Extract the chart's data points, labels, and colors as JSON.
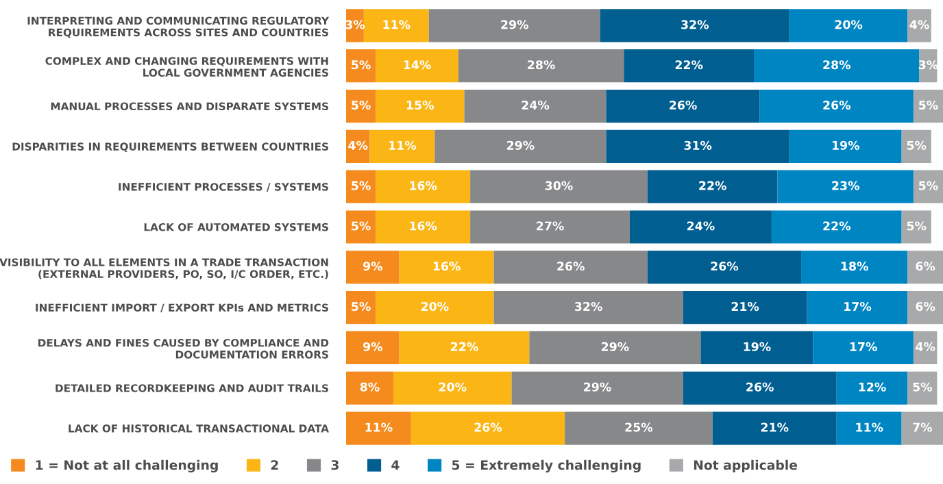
{
  "chart_data": {
    "type": "bar",
    "orientation": "horizontal",
    "stacked": true,
    "legend": "bottom",
    "grid": false,
    "tick_labels": "y",
    "xlim": [
      0,
      101
    ],
    "categories": [
      "INTERPRETING AND COMMUNICATING REGULATORY\nREQUIREMENTS ACROSS SITES AND COUNTRIES",
      "COMPLEX AND CHANGING REQUIREMENTS WITH\nLOCAL GOVERNMENT AGENCIES",
      "MANUAL PROCESSES AND DISPARATE SYSTEMS",
      "DISPARITIES IN REQUIREMENTS BETWEEN COUNTRIES",
      "INEFFICIENT PROCESSES / SYSTEMS",
      "LACK OF AUTOMATED SYSTEMS",
      "VISIBILITY TO ALL ELEMENTS IN A TRADE TRANSACTION\n(EXTERNAL PROVIDERS, PO, SO, I/C ORDER, ETC.)",
      "INEFFICIENT IMPORT / EXPORT KPIs AND METRICS",
      "DELAYS AND FINES CAUSED BY COMPLIANCE AND\nDOCUMENTATION ERRORS",
      "DETAILED RECORDKEEPING AND AUDIT TRAILS",
      "LACK OF HISTORICAL TRANSACTIONAL DATA"
    ],
    "series": [
      {
        "name": "1 = Not at all challenging",
        "color": "#f58b1f",
        "values": [
          3,
          5,
          5,
          4,
          5,
          5,
          9,
          5,
          9,
          8,
          11
        ],
        "value_labels": [
          "3%",
          "5%",
          "5%",
          "4%",
          "5%",
          "5%",
          "9%",
          "5%",
          "9%",
          "8%",
          "11%"
        ]
      },
      {
        "name": "2",
        "color": "#fbb616",
        "values": [
          11,
          14,
          15,
          11,
          16,
          16,
          16,
          20,
          22,
          20,
          26
        ],
        "value_labels": [
          "11%",
          "14%",
          "15%",
          "11%",
          "16%",
          "16%",
          "16%",
          "20%",
          "22%",
          "20%",
          "26%"
        ]
      },
      {
        "name": "3",
        "color": "#87888a",
        "values": [
          29,
          28,
          24,
          29,
          30,
          27,
          26,
          32,
          29,
          29,
          25
        ],
        "value_labels": [
          "29%",
          "28%",
          "24%",
          "29%",
          "30%",
          "27%",
          "26%",
          "32%",
          "29%",
          "29%",
          "25%"
        ]
      },
      {
        "name": "4",
        "color": "#005e91",
        "values": [
          32,
          22,
          26,
          31,
          22,
          24,
          26,
          21,
          19,
          26,
          21
        ],
        "value_labels": [
          "32%",
          "22%",
          "26%",
          "31%",
          "22%",
          "24%",
          "26%",
          "21%",
          "19%",
          "26%",
          "21%"
        ]
      },
      {
        "name": "5 = Extremely challenging",
        "color": "#0085c3",
        "values": [
          20,
          28,
          26,
          19,
          23,
          22,
          18,
          17,
          17,
          12,
          11
        ],
        "value_labels": [
          "20%",
          "28%",
          "26%",
          "19%",
          "23%",
          "22%",
          "18%",
          "17%",
          "17%",
          "12%",
          "11%"
        ]
      },
      {
        "name": "Not applicable",
        "color": "#a8a9ab",
        "values": [
          4,
          3,
          5,
          5,
          5,
          5,
          6,
          6,
          4,
          5,
          7
        ],
        "value_labels": [
          "4%",
          "3%",
          "5%",
          "5%",
          "5%",
          "5%",
          "6%",
          "6%",
          "4%",
          "5%",
          "7%"
        ]
      }
    ]
  }
}
